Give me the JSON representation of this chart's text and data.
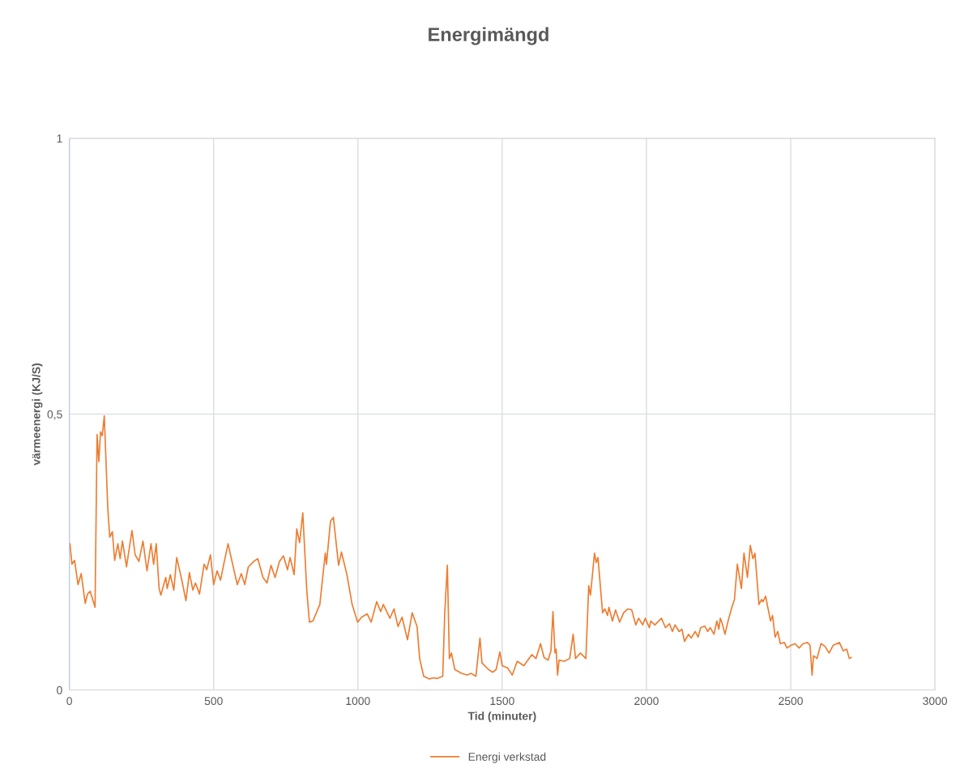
{
  "chart_data": {
    "type": "line",
    "title": "Energimängd",
    "xlabel": "Tid (minuter)",
    "ylabel": "värmeenergi (KJ/S)",
    "xlim": [
      0,
      3000
    ],
    "xticks": [
      0,
      500,
      1000,
      1500,
      2000,
      2500,
      3000
    ],
    "ylim": [
      0,
      1
    ],
    "yticks": [
      0,
      {
        "value": 0.5,
        "label": "0,5"
      },
      1
    ],
    "grid": true,
    "legend": "bottom",
    "marker": "none",
    "line_style": "solid",
    "series": [
      {
        "name": "Energi verkstad",
        "color": "#ed7d31",
        "x": [
          2,
          9,
          18,
          30,
          41,
          55,
          63,
          72,
          89,
          96,
          102,
          108,
          114,
          121,
          133,
          140,
          149,
          157,
          168,
          176,
          184,
          198,
          217,
          228,
          241,
          255,
          269,
          283,
          292,
          301,
          311,
          317,
          334,
          339,
          350,
          362,
          372,
          389,
          404,
          416,
          428,
          437,
          451,
          467,
          476,
          489,
          500,
          512,
          524,
          535,
          550,
          568,
          582,
          596,
          608,
          620,
          639,
          653,
          671,
          685,
          699,
          713,
          728,
          742,
          756,
          765,
          779,
          788,
          798,
          809,
          823,
          832,
          844,
          868,
          887,
          891,
          905,
          915,
          933,
          943,
          962,
          980,
          999,
          1013,
          1032,
          1046,
          1065,
          1079,
          1088,
          1111,
          1125,
          1139,
          1153,
          1172,
          1188,
          1205,
          1214,
          1228,
          1247,
          1261,
          1275,
          1294,
          1301,
          1310,
          1317,
          1324,
          1336,
          1360,
          1378,
          1392,
          1409,
          1423,
          1430,
          1453,
          1467,
          1479,
          1492,
          1500,
          1519,
          1535,
          1552,
          1575,
          1603,
          1617,
          1633,
          1645,
          1659,
          1669,
          1676,
          1683,
          1687,
          1692,
          1697,
          1715,
          1734,
          1746,
          1754,
          1771,
          1790,
          1800,
          1806,
          1820,
          1826,
          1832,
          1848,
          1856,
          1865,
          1870,
          1882,
          1893,
          1907,
          1921,
          1935,
          1949,
          1963,
          1973,
          1987,
          1996,
          2010,
          2015,
          2029,
          2052,
          2066,
          2080,
          2090,
          2099,
          2113,
          2123,
          2132,
          2146,
          2155,
          2169,
          2179,
          2188,
          2202,
          2212,
          2221,
          2234,
          2244,
          2251,
          2256,
          2263,
          2272,
          2283,
          2296,
          2305,
          2315,
          2329,
          2338,
          2350,
          2360,
          2369,
          2376,
          2390,
          2399,
          2404,
          2413,
          2430,
          2437,
          2446,
          2455,
          2464,
          2478,
          2487,
          2501,
          2515,
          2529,
          2543,
          2558,
          2567,
          2574,
          2579,
          2591,
          2605,
          2619,
          2633,
          2647,
          2669,
          2682,
          2694,
          2703,
          2710
        ],
        "values": [
          0.265,
          0.228,
          0.235,
          0.191,
          0.211,
          0.157,
          0.174,
          0.179,
          0.15,
          0.463,
          0.414,
          0.468,
          0.461,
          0.497,
          0.331,
          0.277,
          0.287,
          0.235,
          0.265,
          0.238,
          0.27,
          0.223,
          0.289,
          0.245,
          0.233,
          0.27,
          0.216,
          0.265,
          0.228,
          0.265,
          0.184,
          0.172,
          0.204,
          0.184,
          0.209,
          0.181,
          0.24,
          0.201,
          0.162,
          0.213,
          0.181,
          0.194,
          0.174,
          0.228,
          0.218,
          0.245,
          0.191,
          0.216,
          0.199,
          0.228,
          0.265,
          0.223,
          0.191,
          0.211,
          0.191,
          0.223,
          0.233,
          0.238,
          0.204,
          0.194,
          0.226,
          0.204,
          0.233,
          0.243,
          0.218,
          0.24,
          0.209,
          0.292,
          0.267,
          0.321,
          0.179,
          0.123,
          0.125,
          0.155,
          0.248,
          0.228,
          0.306,
          0.313,
          0.226,
          0.25,
          0.209,
          0.155,
          0.123,
          0.132,
          0.138,
          0.123,
          0.16,
          0.142,
          0.155,
          0.13,
          0.147,
          0.115,
          0.132,
          0.091,
          0.14,
          0.115,
          0.057,
          0.025,
          0.02,
          0.022,
          0.021,
          0.025,
          0.14,
          0.226,
          0.057,
          0.067,
          0.037,
          0.03,
          0.027,
          0.03,
          0.025,
          0.094,
          0.049,
          0.037,
          0.032,
          0.037,
          0.069,
          0.044,
          0.04,
          0.027,
          0.052,
          0.044,
          0.064,
          0.057,
          0.084,
          0.059,
          0.054,
          0.071,
          0.142,
          0.067,
          0.074,
          0.027,
          0.054,
          0.052,
          0.057,
          0.101,
          0.057,
          0.067,
          0.057,
          0.189,
          0.172,
          0.248,
          0.231,
          0.24,
          0.14,
          0.147,
          0.135,
          0.15,
          0.125,
          0.145,
          0.123,
          0.14,
          0.147,
          0.145,
          0.118,
          0.13,
          0.118,
          0.13,
          0.113,
          0.125,
          0.118,
          0.13,
          0.113,
          0.12,
          0.106,
          0.118,
          0.106,
          0.11,
          0.088,
          0.101,
          0.094,
          0.106,
          0.096,
          0.113,
          0.116,
          0.106,
          0.113,
          0.101,
          0.125,
          0.11,
          0.13,
          0.12,
          0.101,
          0.125,
          0.15,
          0.164,
          0.228,
          0.184,
          0.248,
          0.204,
          0.262,
          0.238,
          0.248,
          0.155,
          0.164,
          0.16,
          0.17,
          0.125,
          0.135,
          0.096,
          0.106,
          0.084,
          0.086,
          0.076,
          0.081,
          0.084,
          0.076,
          0.084,
          0.086,
          0.081,
          0.027,
          0.062,
          0.057,
          0.084,
          0.079,
          0.067,
          0.081,
          0.086,
          0.071,
          0.074,
          0.057,
          0.059
        ]
      }
    ]
  }
}
